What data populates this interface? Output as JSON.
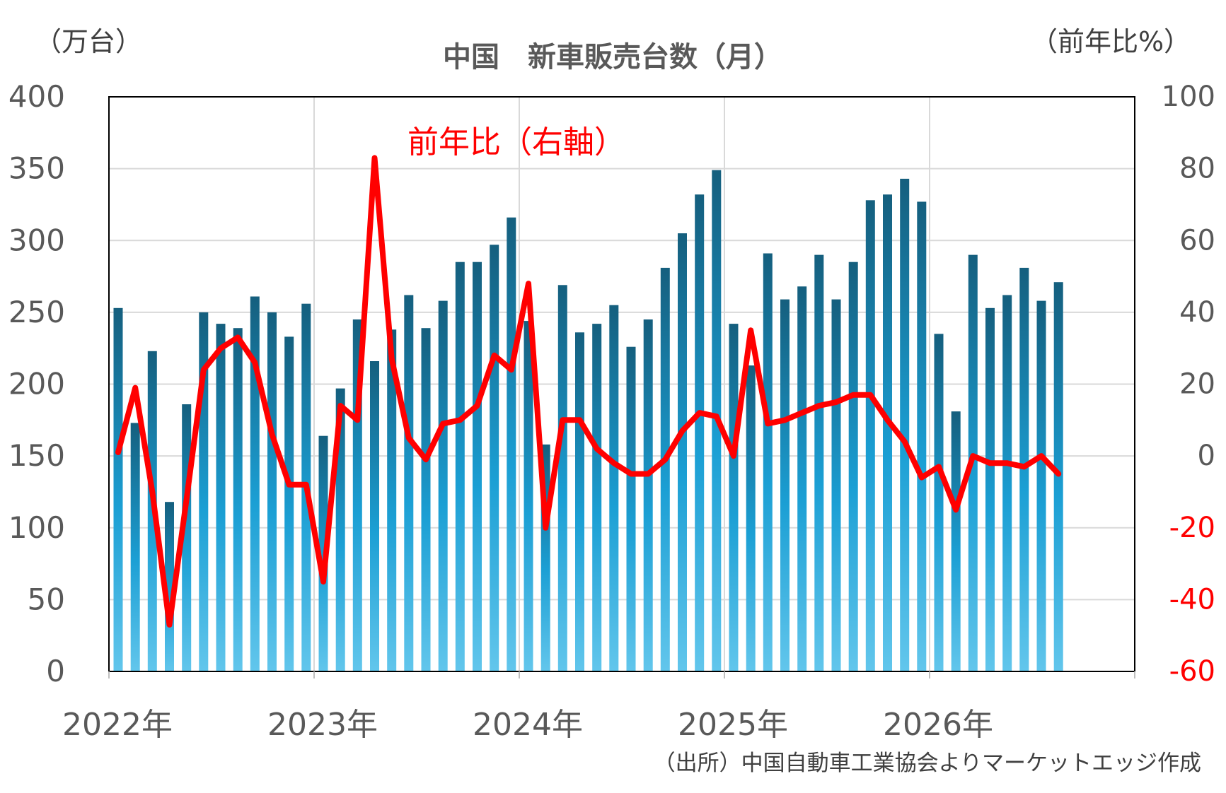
{
  "chart_data": {
    "type": "bar+line",
    "title": "中国　新車販売台数（月）",
    "y_left_unit": "（万台）",
    "y_right_unit": "（前年比%）",
    "line_annotation": "前年比（右軸）",
    "source": "（出所）中国自動車工業協会よりマーケットエッジ作成",
    "x_year_labels": [
      "2022年",
      "2023年",
      "2024年",
      "2025年",
      "2026年"
    ],
    "y_left_ticks": [
      "0",
      "50",
      "100",
      "150",
      "200",
      "250",
      "300",
      "350",
      "400"
    ],
    "y_right_ticks": [
      "-60",
      "-40",
      "-20",
      "0",
      "20",
      "40",
      "60",
      "80",
      "100"
    ],
    "y_left_range": [
      0,
      400
    ],
    "y_right_range": [
      -60,
      100
    ],
    "grid": true,
    "colors": {
      "bar_top": "#155f7e",
      "bar_mid": "#1b9fd4",
      "bar_bottom": "#62c6ec",
      "line": "#ff0000",
      "axis_text": "#595959",
      "negative_tick": "#ff0000",
      "gridline": "#d9d9d9",
      "title": "#595959"
    },
    "series": [
      {
        "name": "新車販売台数",
        "type": "bar",
        "axis": "left",
        "start": "2022-01",
        "values": [
          253,
          173,
          223,
          118,
          186,
          250,
          242,
          239,
          261,
          250,
          233,
          256,
          164,
          197,
          245,
          216,
          238,
          262,
          239,
          258,
          285,
          285,
          297,
          316,
          244,
          158,
          269,
          236,
          242,
          255,
          226,
          245,
          281,
          305,
          332,
          349,
          242,
          213,
          291,
          259,
          268,
          290,
          259,
          285,
          328,
          332,
          343,
          327,
          235,
          181,
          290,
          253,
          262,
          281,
          258,
          271
        ]
      },
      {
        "name": "前年比（右軸）",
        "type": "line",
        "axis": "right",
        "start": "2022-01",
        "values": [
          1,
          19,
          -10,
          -47,
          -12,
          24,
          30,
          33,
          26,
          6,
          -8,
          -8,
          -35,
          14,
          10,
          83,
          27,
          5,
          -1,
          9,
          10,
          14,
          28,
          24,
          48,
          -20,
          10,
          10,
          2,
          -2,
          -5,
          -5,
          -1,
          7,
          12,
          11,
          0,
          35,
          9,
          10,
          12,
          14,
          15,
          17,
          17,
          10,
          4,
          -6,
          -3,
          -15,
          0,
          -2,
          -2,
          -3,
          0,
          -5
        ]
      }
    ]
  }
}
